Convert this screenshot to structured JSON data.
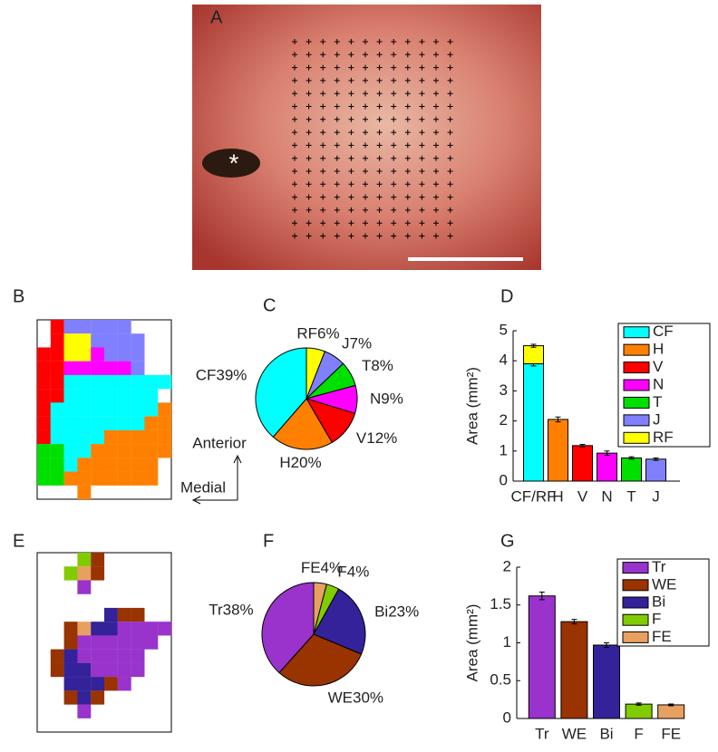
{
  "panel_labels": [
    "A",
    "B",
    "C",
    "D",
    "E",
    "F",
    "G"
  ],
  "photo_marker": "*",
  "orientation": {
    "anterior": "Anterior",
    "medial": "Medial"
  },
  "chart_data": [
    {
      "type": "pie",
      "categories": [
        "RF",
        "J",
        "T",
        "N",
        "V",
        "H",
        "CF"
      ],
      "values": [
        6,
        7,
        8,
        9,
        12,
        20,
        39
      ],
      "value_labels": [
        "RF6%",
        "J7%",
        "T8%",
        "N9%",
        "V12%",
        "H20%",
        "CF39%"
      ],
      "colors": [
        "#ffff00",
        "#8080ff",
        "#00e000",
        "#ff00ff",
        "#ff0000",
        "#ff8000",
        "#00ffff"
      ]
    },
    {
      "type": "bar",
      "stacked": true,
      "ylabel": "Area (mm²)",
      "categories": [
        "CF/RF",
        "H",
        "V",
        "N",
        "T",
        "J"
      ],
      "ylim": [
        0,
        5
      ],
      "yticks": [
        0,
        1,
        2,
        3,
        4,
        5
      ],
      "legend": "upper right",
      "series": [
        {
          "name": "CF",
          "color": "#00ffff",
          "values": [
            3.9,
            null,
            null,
            null,
            null,
            null
          ],
          "errors": [
            0.07,
            null,
            null,
            null,
            null,
            null
          ]
        },
        {
          "name": "H",
          "color": "#ff8000",
          "values": [
            null,
            2.05,
            null,
            null,
            null,
            null
          ],
          "errors": [
            null,
            0.08,
            null,
            null,
            null,
            null
          ]
        },
        {
          "name": "V",
          "color": "#ff0000",
          "values": [
            null,
            null,
            1.18,
            null,
            null,
            null
          ],
          "errors": [
            null,
            null,
            0.04,
            null,
            null,
            null
          ]
        },
        {
          "name": "N",
          "color": "#ff00ff",
          "values": [
            null,
            null,
            null,
            0.93,
            null,
            null
          ],
          "errors": [
            null,
            null,
            null,
            0.07,
            null,
            null
          ]
        },
        {
          "name": "T",
          "color": "#00e000",
          "values": [
            null,
            null,
            null,
            null,
            0.77,
            null
          ],
          "errors": [
            null,
            null,
            null,
            null,
            0.04,
            null
          ]
        },
        {
          "name": "J",
          "color": "#8080ff",
          "values": [
            null,
            null,
            null,
            null,
            null,
            0.73
          ],
          "errors": [
            null,
            null,
            null,
            null,
            null,
            0.04
          ]
        },
        {
          "name": "RF",
          "color": "#ffff00",
          "values": [
            0.6,
            null,
            null,
            null,
            null,
            null
          ],
          "errors": [
            0.05,
            null,
            null,
            null,
            null,
            null
          ]
        }
      ]
    },
    {
      "type": "pie",
      "categories": [
        "FE",
        "F",
        "Bi",
        "WE",
        "Tr"
      ],
      "values": [
        4,
        4,
        23,
        30,
        38
      ],
      "value_labels": [
        "FE4%",
        "F4%",
        "Bi23%",
        "WE30%",
        "Tr38%"
      ],
      "colors": [
        "#e8a060",
        "#80cc00",
        "#332299",
        "#993300",
        "#9933cc"
      ]
    },
    {
      "type": "bar",
      "stacked": true,
      "ylabel": "Area (mm²)",
      "categories": [
        "Tr",
        "WE",
        "Bi",
        "F",
        "FE"
      ],
      "ylim": [
        0,
        2
      ],
      "yticks": [
        0,
        0.5,
        1,
        1.5,
        2
      ],
      "legend": "upper right",
      "series": [
        {
          "name": "Tr",
          "color": "#9933cc",
          "values": [
            1.62,
            null,
            null,
            null,
            null
          ],
          "errors": [
            0.05,
            null,
            null,
            null,
            null
          ]
        },
        {
          "name": "WE",
          "color": "#993300",
          "values": [
            null,
            1.28,
            null,
            null,
            null
          ],
          "errors": [
            null,
            0.03,
            null,
            null,
            null
          ]
        },
        {
          "name": "Bi",
          "color": "#332299",
          "values": [
            null,
            null,
            0.97,
            null,
            null
          ],
          "errors": [
            null,
            null,
            0.03,
            null,
            null
          ]
        },
        {
          "name": "F",
          "color": "#80cc00",
          "values": [
            null,
            null,
            null,
            0.19,
            null
          ],
          "errors": [
            null,
            null,
            null,
            0.015,
            null
          ]
        },
        {
          "name": "FE",
          "color": "#e8a060",
          "values": [
            null,
            null,
            null,
            null,
            0.18
          ],
          "errors": [
            null,
            null,
            null,
            null,
            0.012
          ]
        }
      ]
    }
  ]
}
